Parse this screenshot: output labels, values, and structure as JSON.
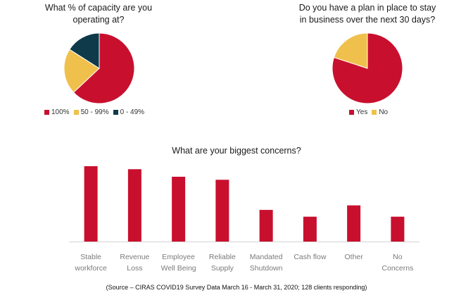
{
  "colors": {
    "red": "#c8102e",
    "yellow": "#f0c04c",
    "navy": "#0e3a4a",
    "tick": "#7a7a7a",
    "axis": "#d4d4d4"
  },
  "chart_data": [
    {
      "type": "pie",
      "title": "What % of capacity are you operating at?",
      "title_lines": [
        "What % of capacity are you",
        "operating at?"
      ],
      "slices": [
        {
          "label": "100%",
          "value": 63,
          "color": "#c8102e"
        },
        {
          "label": "50 - 99%",
          "value": 21,
          "color": "#f0c04c"
        },
        {
          "label": "0 - 49%",
          "value": 16,
          "color": "#0e3a4a"
        }
      ],
      "legend_position": "bottom"
    },
    {
      "type": "pie",
      "title": "Do you have a plan in place to stay in business over the next 30 days?",
      "title_lines": [
        "Do you have a plan in place to stay",
        "in business over the next 30 days?"
      ],
      "slices": [
        {
          "label": "Yes",
          "value": 80,
          "color": "#c8102e"
        },
        {
          "label": "No",
          "value": 20,
          "color": "#f0c04c"
        }
      ],
      "legend_position": "bottom"
    },
    {
      "type": "bar",
      "title": "What are your biggest concerns?",
      "categories": [
        [
          "Stable",
          "workforce"
        ],
        [
          "Revenue",
          "Loss"
        ],
        [
          "Employee",
          "Well Being"
        ],
        [
          "Reliable",
          "Supply"
        ],
        [
          "Mandated",
          "Shutdown"
        ],
        [
          "Cash flow"
        ],
        [
          "Other"
        ],
        [
          "No",
          "Concerns"
        ]
      ],
      "values": [
        100,
        96,
        86,
        82,
        42,
        33,
        48,
        33
      ],
      "ylim": [
        0,
        100
      ],
      "grid": false,
      "color": "#c8102e"
    }
  ],
  "source": "(Source – CIRAS COVID19 Survey Data March 16 - March 31, 2020; 128 clients responding)"
}
